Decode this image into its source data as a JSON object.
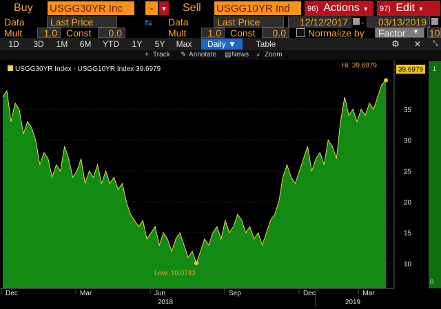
{
  "top_bar": {
    "buy_label": "Buy",
    "buy_ticker": "USGG30YR Inc",
    "op": "-",
    "op_dropdown": "▾",
    "sell_label": "Sell",
    "sell_ticker": "USGG10YR Ind",
    "actions_num": "96)",
    "actions_label": "Actions",
    "edit_num": "97)",
    "edit_label": "Edit"
  },
  "row2": {
    "data_label_left": "Data",
    "data_value_left": "Last Price",
    "data_label_right": "Data",
    "data_value_right": "Last Price",
    "start_date": "12/12/2017",
    "end_date": "03/13/2019"
  },
  "row3": {
    "mult_label_left": "Mult",
    "mult_value_left": "1.0",
    "const_label_left": "Const",
    "const_value_left": "0.0",
    "mult_label_right": "Mult",
    "mult_value_right": "1.0",
    "const_label_right": "Const",
    "const_value_right": "0.0",
    "normalize_label": "Normalize by",
    "normalize_value": "Factor",
    "extra_value": "10"
  },
  "tabs": [
    "1D",
    "3D",
    "1M",
    "6M",
    "YTD",
    "1Y",
    "5Y",
    "Max",
    "Daily ▼",
    "Table"
  ],
  "toolbar": {
    "track": "Track",
    "annotate": "Annotate",
    "news": "News",
    "zoom": "Zoom"
  },
  "colors": {
    "accent": "#f5a623",
    "fill": "#138a13",
    "line": "#e8d84a",
    "action_red": "#b5121b"
  },
  "chart_data": {
    "type": "area",
    "legend": "USGG30YR Index - USGG10YR Index 39.6979",
    "hi_label": "Hi: 39.6979",
    "low_label": "Low: 10.0742",
    "last_value_label": "39.6979",
    "ylim": [
      6,
      43
    ],
    "yticks": [
      "10",
      "15",
      "20",
      "25",
      "30",
      "35"
    ],
    "x_month_labels": [
      "Dec",
      "Mar",
      "Jun",
      "Sep",
      "Dec",
      "Mar"
    ],
    "x_year_labels": [
      "2018",
      "2019"
    ],
    "values": [
      37,
      38,
      33,
      36,
      35,
      31,
      33,
      32,
      30,
      26,
      28,
      27,
      24,
      26,
      25,
      29,
      27,
      24,
      25,
      27,
      23,
      25,
      24,
      26,
      23,
      25,
      23,
      24,
      22,
      23,
      20,
      18,
      17,
      16,
      17,
      14,
      15,
      16,
      13,
      15,
      14,
      12,
      14,
      15,
      13,
      11,
      12,
      10.1,
      12,
      14,
      13,
      15,
      16,
      14,
      17,
      15,
      16,
      18,
      17,
      15,
      16,
      14,
      15,
      13,
      15,
      17,
      18,
      20,
      24,
      26,
      24,
      23,
      25,
      27,
      29,
      25,
      27,
      28,
      26,
      30,
      29,
      27,
      33,
      37,
      34,
      35,
      33,
      35,
      34,
      36,
      35,
      37,
      39,
      39.7
    ]
  },
  "right_panel": {
    "top_value": "1",
    "bottom_value": "0"
  }
}
